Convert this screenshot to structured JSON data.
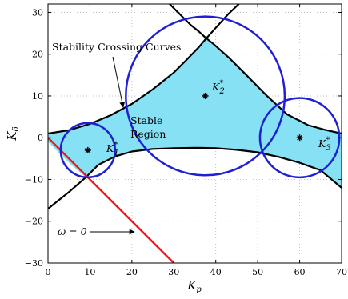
{
  "chart_data": {
    "type": "line",
    "xlabel": "K",
    "xlabel_sub": "p",
    "ylabel": "K",
    "ylabel_sub": "δ",
    "xlim": [
      0,
      70
    ],
    "ylim": [
      -30,
      32
    ],
    "xticks": [
      0,
      10,
      20,
      30,
      40,
      50,
      60,
      70
    ],
    "yticks": [
      -30,
      -20,
      -10,
      0,
      10,
      20,
      30
    ],
    "grid": true,
    "colors": {
      "curves": "#000000",
      "stable_region": "#87e1f5",
      "circles": "#1f1fd6",
      "omega_line": "#e81a1a"
    },
    "stability_crossing_curves": {
      "upper_left": [
        [
          0,
          1
        ],
        [
          5,
          1.8
        ],
        [
          10,
          3.3
        ],
        [
          15,
          5.4
        ],
        [
          20,
          8.1
        ],
        [
          25,
          11.6
        ],
        [
          30,
          15.6
        ],
        [
          33,
          18.6
        ],
        [
          36,
          21.7
        ],
        [
          37.5,
          23.5
        ],
        [
          40,
          26.3
        ],
        [
          43,
          29.6
        ],
        [
          45.5,
          32
        ]
      ],
      "upper_right": [
        [
          29,
          32
        ],
        [
          31,
          30
        ],
        [
          34,
          27
        ],
        [
          36,
          25.4
        ],
        [
          37.5,
          24
        ],
        [
          39.5,
          22.4
        ],
        [
          43,
          19.3
        ],
        [
          47,
          15.3
        ],
        [
          52,
          10.2
        ],
        [
          57,
          5.6
        ],
        [
          62,
          3.0
        ],
        [
          66,
          1.9
        ],
        [
          70,
          1
        ]
      ],
      "lower_left": [
        [
          0,
          -17
        ],
        [
          5,
          -13
        ],
        [
          9,
          -9.5
        ],
        [
          12,
          -6.5
        ],
        [
          16,
          -4.5
        ],
        [
          20,
          -3.3
        ],
        [
          25,
          -2.7
        ],
        [
          30,
          -2.5
        ],
        [
          35,
          -2.4
        ],
        [
          40,
          -2.5
        ],
        [
          45,
          -2.9
        ],
        [
          50,
          -3.5
        ],
        [
          55,
          -4.6
        ],
        [
          60,
          -6
        ],
        [
          65,
          -7.8
        ],
        [
          70,
          -12
        ]
      ]
    },
    "stable_region_boundary": [
      [
        0,
        1
      ],
      [
        5,
        1.8
      ],
      [
        10,
        3.3
      ],
      [
        15,
        5.4
      ],
      [
        20,
        8.1
      ],
      [
        25,
        11.6
      ],
      [
        30,
        15.6
      ],
      [
        33,
        18.6
      ],
      [
        36,
        21.7
      ],
      [
        37.5,
        24
      ],
      [
        39.5,
        22.4
      ],
      [
        43,
        19.3
      ],
      [
        47,
        15.3
      ],
      [
        52,
        10.2
      ],
      [
        57,
        5.6
      ],
      [
        62,
        3.0
      ],
      [
        66,
        1.9
      ],
      [
        70,
        1
      ],
      [
        70,
        -12
      ],
      [
        65,
        -7.8
      ],
      [
        60,
        -6
      ],
      [
        55,
        -4.6
      ],
      [
        50,
        -3.5
      ],
      [
        45,
        -2.9
      ],
      [
        40,
        -2.5
      ],
      [
        35,
        -2.4
      ],
      [
        30,
        -2.5
      ],
      [
        25,
        -2.7
      ],
      [
        20,
        -3.3
      ],
      [
        16,
        -4.5
      ],
      [
        12,
        -6.5
      ],
      [
        9,
        -9.5
      ],
      [
        5,
        -6
      ],
      [
        2,
        -3
      ],
      [
        0,
        -1
      ]
    ],
    "omega_zero_line": [
      [
        0,
        0
      ],
      [
        30,
        -30
      ]
    ],
    "circles": [
      {
        "name": "K*1",
        "cx": 9.5,
        "cy": -3,
        "r": 6.5
      },
      {
        "name": "K*2",
        "cx": 37.5,
        "cy": 10,
        "r": 19
      },
      {
        "name": "K*3",
        "cx": 60,
        "cy": 0,
        "r": 9.5
      }
    ],
    "points": [
      {
        "name": "K*1",
        "x": 9.5,
        "y": -3
      },
      {
        "name": "K*2",
        "x": 37.5,
        "y": 10
      },
      {
        "name": "K*3",
        "x": 60,
        "y": 0
      }
    ],
    "annotations": {
      "stability_curves_label": "Stability Crossing Curves",
      "stable_region_line1": "Stable",
      "stable_region_line2": "Region",
      "omega_label": "ω = 0",
      "k_label_base": "K",
      "k_label_star": "*",
      "k_subscripts": [
        "1",
        "2",
        "3"
      ]
    }
  }
}
